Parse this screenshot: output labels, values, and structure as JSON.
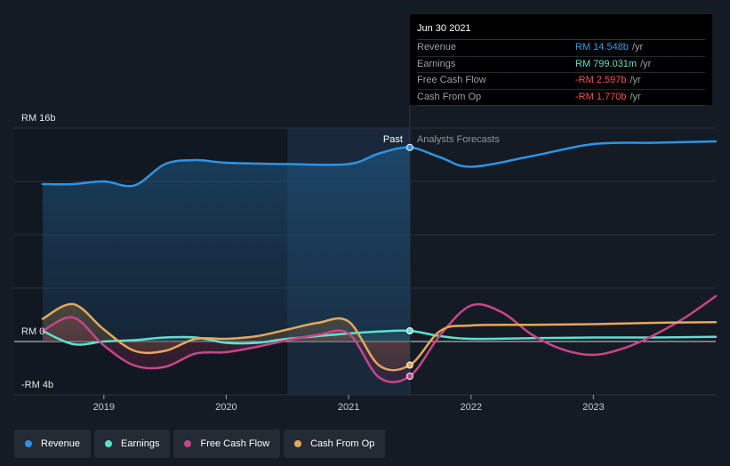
{
  "tooltip": {
    "date": "Jun 30 2021",
    "rows": [
      {
        "name": "Revenue",
        "value": "RM 14.548b",
        "unit": "/yr",
        "color": "#2e9bea"
      },
      {
        "name": "Earnings",
        "value": "RM 799.031m",
        "unit": "/yr",
        "color": "#5ee0cf"
      },
      {
        "name": "Free Cash Flow",
        "value": "-RM 2.597b",
        "unit": "/yr",
        "color": "#ff4d4d"
      },
      {
        "name": "Cash From Op",
        "value": "-RM 1.770b",
        "unit": "/yr",
        "color": "#ff4d4d"
      }
    ]
  },
  "legend": [
    {
      "label": "Revenue",
      "color": "#2e93e6"
    },
    {
      "label": "Earnings",
      "color": "#5ee0cf"
    },
    {
      "label": "Free Cash Flow",
      "color": "#c9458a"
    },
    {
      "label": "Cash From Op",
      "color": "#e4a85c"
    }
  ],
  "annotations": {
    "past": "Past",
    "forecast": "Analysts Forecasts"
  },
  "chart_data": {
    "type": "line",
    "title": "",
    "xlabel": "",
    "ylabel": "",
    "xlim": [
      2018.5,
      2024.0
    ],
    "ylim": [
      -4,
      16
    ],
    "y_ticks": [
      {
        "value": 16,
        "label": "RM 16b"
      },
      {
        "value": 0,
        "label": "RM 0"
      },
      {
        "value": -4,
        "label": "-RM 4b"
      }
    ],
    "x_ticks": [
      {
        "value": 2019,
        "label": "2019"
      },
      {
        "value": 2020,
        "label": "2020"
      },
      {
        "value": 2021,
        "label": "2021"
      },
      {
        "value": 2022,
        "label": "2022"
      },
      {
        "value": 2023,
        "label": "2023"
      }
    ],
    "past_end": 2021.5,
    "highlight_start": 2020.5,
    "series": [
      {
        "name": "Revenue",
        "color": "#2e93e6",
        "x": [
          2018.5,
          2018.75,
          2019.0,
          2019.25,
          2019.5,
          2019.75,
          2020.0,
          2020.5,
          2021.0,
          2021.25,
          2021.5,
          2021.75,
          2022.0,
          2022.5,
          2023.0,
          2023.5,
          2024.0
        ],
        "y": [
          11.8,
          11.8,
          12.0,
          11.7,
          13.3,
          13.6,
          13.4,
          13.3,
          13.3,
          14.1,
          14.548,
          13.8,
          13.1,
          13.9,
          14.8,
          14.9,
          15.0
        ]
      },
      {
        "name": "Earnings",
        "color": "#5ee0cf",
        "x": [
          2018.5,
          2018.75,
          2019.0,
          2019.25,
          2019.5,
          2019.75,
          2020.0,
          2020.25,
          2020.5,
          2021.0,
          2021.25,
          2021.5,
          2021.75,
          2022.0,
          2022.5,
          2023.0,
          2023.5,
          2024.0
        ],
        "y": [
          0.8,
          -0.2,
          0.0,
          0.1,
          0.3,
          0.3,
          -0.1,
          -0.1,
          0.2,
          0.6,
          0.75,
          0.8,
          0.4,
          0.2,
          0.25,
          0.3,
          0.3,
          0.35
        ]
      },
      {
        "name": "Free Cash Flow",
        "color": "#c9458a",
        "x": [
          2018.5,
          2018.75,
          2019.0,
          2019.25,
          2019.5,
          2019.75,
          2020.0,
          2020.25,
          2020.5,
          2020.75,
          2021.0,
          2021.25,
          2021.5,
          2021.75,
          2022.0,
          2022.25,
          2022.5,
          2022.75,
          2023.0,
          2023.25,
          2023.5,
          2023.75,
          2024.0
        ],
        "y": [
          0.8,
          1.8,
          -0.3,
          -1.8,
          -1.9,
          -0.9,
          -0.8,
          -0.4,
          0.1,
          0.5,
          0.6,
          -2.7,
          -2.6,
          0.5,
          2.7,
          2.2,
          0.5,
          -0.6,
          -1.0,
          -0.5,
          0.5,
          1.8,
          3.4
        ]
      },
      {
        "name": "Cash From Op",
        "color": "#e4a85c",
        "x": [
          2018.5,
          2018.75,
          2019.0,
          2019.25,
          2019.5,
          2019.75,
          2020.0,
          2020.25,
          2020.5,
          2020.75,
          2021.0,
          2021.25,
          2021.5,
          2021.75,
          2022.0,
          2022.5,
          2023.0,
          2023.5,
          2024.0
        ],
        "y": [
          1.7,
          2.8,
          0.9,
          -0.7,
          -0.7,
          0.2,
          0.2,
          0.4,
          0.9,
          1.4,
          1.5,
          -1.8,
          -1.77,
          0.8,
          1.2,
          1.25,
          1.3,
          1.4,
          1.45
        ]
      }
    ]
  }
}
